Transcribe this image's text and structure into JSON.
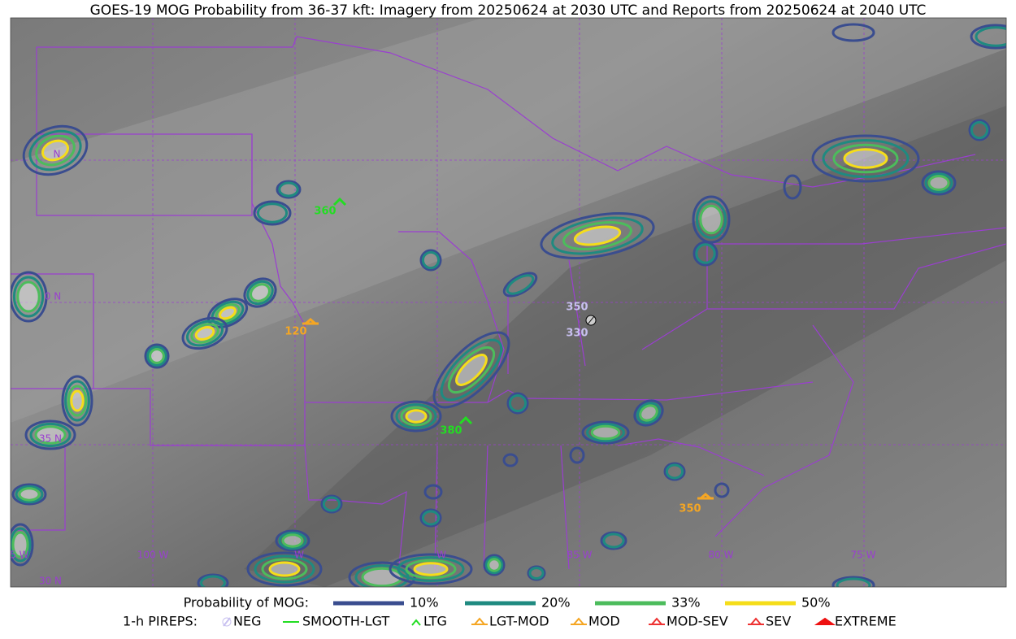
{
  "title": "GOES-19 MOG Probability from 36-37 kft: Imagery from 20250624 at 2030 UTC and Reports from 20250624 at 2040 UTC",
  "map": {
    "lon_labels": [
      "05 W",
      "100 W",
      "W",
      "W",
      "85 W",
      "80 W",
      "75 W"
    ],
    "lat_labels": [
      "N",
      "0 N",
      "35 N",
      "30 N"
    ],
    "reports": [
      {
        "label": "360",
        "kind": "LTG"
      },
      {
        "label": "120",
        "kind": "LGT-MOD"
      },
      {
        "label": "380",
        "kind": "LTG"
      },
      {
        "label": "350",
        "kind": "NEG"
      },
      {
        "label": "330",
        "kind": "NEG"
      },
      {
        "label": "350",
        "kind": "LGT-MOD"
      }
    ]
  },
  "legend": {
    "probability_title": "Probability of MOG:",
    "levels": [
      "10%",
      "20%",
      "33%",
      "50%"
    ],
    "pireps_title": "1-h PIREPS:",
    "pirep_types": [
      "NEG",
      "SMOOTH-LGT",
      "LTG",
      "LGT-MOD",
      "MOD",
      "MOD-SEV",
      "SEV",
      "EXTREME"
    ]
  }
}
